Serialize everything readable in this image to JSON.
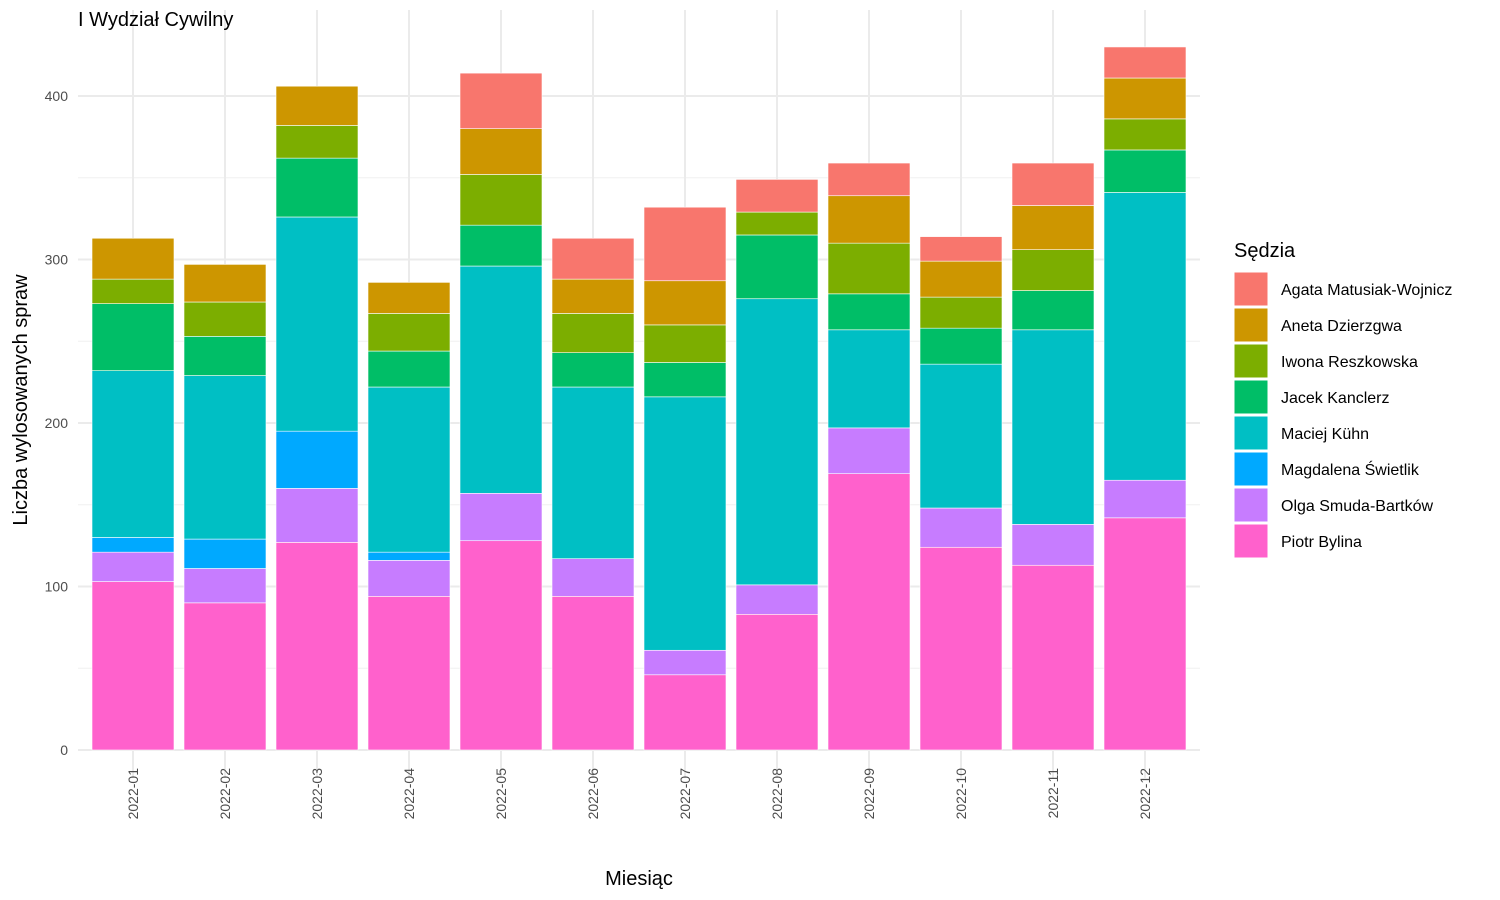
{
  "chart_data": {
    "type": "bar",
    "stacked": true,
    "title": "I Wydział Cywilny",
    "xlabel": "Miesiąc",
    "ylabel": "Liczba wylosowanych spraw",
    "ylim": [
      0,
      430
    ],
    "yticks": [
      0,
      100,
      200,
      300,
      400
    ],
    "grid": true,
    "legend": {
      "title": "Sędzia",
      "position": "right"
    },
    "categories": [
      "2022-01",
      "2022-02",
      "2022-03",
      "2022-04",
      "2022-05",
      "2022-06",
      "2022-07",
      "2022-08",
      "2022-09",
      "2022-10",
      "2022-11",
      "2022-12"
    ],
    "series": [
      {
        "name": "Piotr Bylina",
        "color": "#FF61CC",
        "values": [
          103,
          90,
          127,
          94,
          128,
          94,
          46,
          83,
          169,
          124,
          113,
          142
        ]
      },
      {
        "name": "Olga Smuda-Bartków",
        "color": "#C77CFF",
        "values": [
          18,
          21,
          33,
          22,
          29,
          23,
          15,
          18,
          28,
          24,
          25,
          23
        ]
      },
      {
        "name": "Magdalena Świetlik",
        "color": "#00A9FF",
        "values": [
          9,
          18,
          35,
          5,
          0,
          0,
          0,
          0,
          0,
          0,
          0,
          0
        ]
      },
      {
        "name": "Maciej Kühn",
        "color": "#00BFC4",
        "values": [
          102,
          100,
          131,
          101,
          139,
          105,
          155,
          175,
          60,
          88,
          119,
          176
        ]
      },
      {
        "name": "Jacek Kanclerz",
        "color": "#00BE67",
        "values": [
          41,
          24,
          36,
          22,
          25,
          21,
          21,
          39,
          22,
          22,
          24,
          26
        ]
      },
      {
        "name": "Iwona Reszkowska",
        "color": "#7CAE00",
        "values": [
          15,
          21,
          20,
          23,
          31,
          24,
          23,
          14,
          31,
          19,
          25,
          19
        ]
      },
      {
        "name": "Aneta Dzierzgwa",
        "color": "#CD9600",
        "values": [
          25,
          23,
          24,
          19,
          28,
          21,
          27,
          0,
          29,
          22,
          27,
          25
        ]
      },
      {
        "name": "Agata Matusiak-Wojnicz",
        "color": "#F8766D",
        "values": [
          0,
          0,
          0,
          0,
          34,
          25,
          45,
          20,
          20,
          15,
          26,
          19
        ]
      }
    ]
  }
}
